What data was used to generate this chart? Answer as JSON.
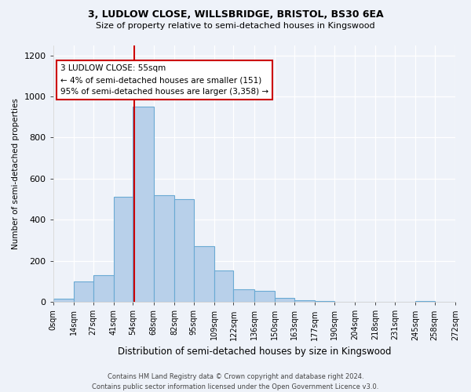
{
  "title1": "3, LUDLOW CLOSE, WILLSBRIDGE, BRISTOL, BS30 6EA",
  "title2": "Size of property relative to semi-detached houses in Kingswood",
  "xlabel": "Distribution of semi-detached houses by size in Kingswood",
  "ylabel": "Number of semi-detached properties",
  "bin_edges": [
    0,
    14,
    27,
    41,
    54,
    68,
    82,
    95,
    109,
    122,
    136,
    150,
    163,
    177,
    190,
    204,
    218,
    231,
    245,
    258,
    272
  ],
  "bin_labels": [
    "0sqm",
    "14sqm",
    "27sqm",
    "41sqm",
    "54sqm",
    "68sqm",
    "82sqm",
    "95sqm",
    "109sqm",
    "122sqm",
    "136sqm",
    "150sqm",
    "163sqm",
    "177sqm",
    "190sqm",
    "204sqm",
    "218sqm",
    "231sqm",
    "245sqm",
    "258sqm",
    "272sqm"
  ],
  "counts": [
    15,
    100,
    130,
    510,
    950,
    520,
    500,
    270,
    155,
    60,
    55,
    20,
    10,
    5,
    2,
    0,
    0,
    0,
    5,
    0
  ],
  "bar_color": "#b8d0ea",
  "bar_edge_color": "#6aaad4",
  "property_size": 55,
  "annotation_title": "3 LUDLOW CLOSE: 55sqm",
  "annotation_line1": "← 4% of semi-detached houses are smaller (151)",
  "annotation_line2": "95% of semi-detached houses are larger (3,358) →",
  "annotation_box_color": "#ffffff",
  "annotation_box_edge_color": "#cc0000",
  "vline_color": "#cc0000",
  "ylim": [
    0,
    1250
  ],
  "yticks": [
    0,
    200,
    400,
    600,
    800,
    1000,
    1200
  ],
  "footer1": "Contains HM Land Registry data © Crown copyright and database right 2024.",
  "footer2": "Contains public sector information licensed under the Open Government Licence v3.0.",
  "bg_color": "#eef2f9"
}
